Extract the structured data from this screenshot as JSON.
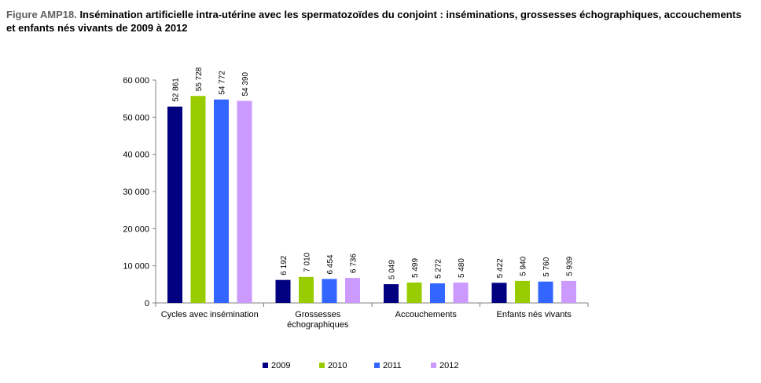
{
  "title": {
    "prefix": "Figure AMP18.",
    "text": " Insémination artificielle intra-utérine avec les spermatozoïdes du conjoint : inséminations, grossesses échographiques, accouchements et enfants nés vivants de 2009 à 2012"
  },
  "chart_data": {
    "type": "bar",
    "categories": [
      [
        "Cycles avec insémination"
      ],
      [
        "Grossesses",
        "échographiques"
      ],
      [
        "Accouchements"
      ],
      [
        "Enfants nés vivants"
      ]
    ],
    "series": [
      {
        "name": "2009",
        "color": "#000080",
        "values": [
          52861,
          6192,
          5049,
          5422
        ],
        "labels": [
          "52 861",
          "6 192",
          "5 049",
          "5 422"
        ]
      },
      {
        "name": "2010",
        "color": "#99CC00",
        "values": [
          55728,
          7010,
          5499,
          5940
        ],
        "labels": [
          "55 728",
          "7 010",
          "5 499",
          "5 940"
        ]
      },
      {
        "name": "2011",
        "color": "#3366FF",
        "values": [
          54772,
          6454,
          5272,
          5760
        ],
        "labels": [
          "54 772",
          "6 454",
          "5 272",
          "5 760"
        ]
      },
      {
        "name": "2012",
        "color": "#CC99FF",
        "values": [
          54390,
          6736,
          5480,
          5939
        ],
        "labels": [
          "54 390",
          "6 736",
          "5 480",
          "5 939"
        ]
      }
    ],
    "yticks": [
      0,
      10000,
      20000,
      30000,
      40000,
      50000,
      60000
    ],
    "ytick_labels": [
      "0",
      "10 000",
      "20 000",
      "30 000",
      "40 000",
      "50 000",
      "60 000"
    ],
    "ylim": [
      0,
      60000
    ],
    "grid": false,
    "legend_position": "bottom"
  }
}
